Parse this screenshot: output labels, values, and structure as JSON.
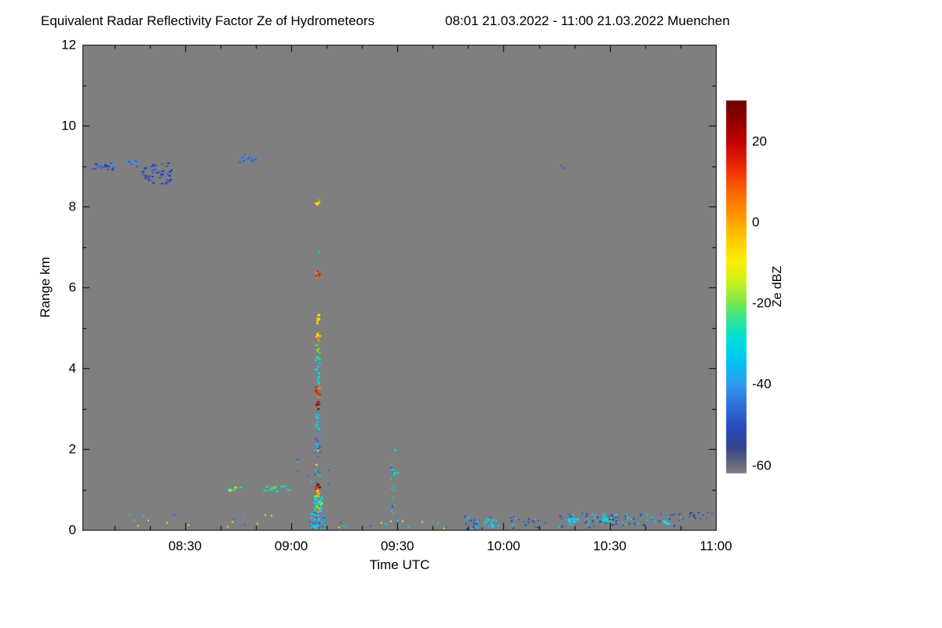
{
  "chart": {
    "title": "Equivalent Radar Reflectivity Factor Ze of Hydrometeors",
    "date_range": "08:01 21.03.2022 - 11:00 21.03.2022 Muenchen",
    "x_label": "Time UTC",
    "y_label": "Range km",
    "colorbar_label": "Ze dBZ"
  },
  "chart_data": {
    "type": "heatmap",
    "title": "Equivalent Radar Reflectivity Factor Ze of Hydrometeors",
    "subtitle": "08:01 21.03.2022 - 11:00 21.03.2022 Muenchen",
    "xlabel": "Time UTC",
    "ylabel": "Range km",
    "x_start": "08:01",
    "x_end": "11:00",
    "x_range_minutes": [
      1,
      180
    ],
    "x_major_step": 30,
    "x_minor_step": 10,
    "ylim_km": [
      0,
      12
    ],
    "y_major_step": 2,
    "y_minor_step": 1,
    "x_ticks": [
      {
        "label": "08:30",
        "minute": 30
      },
      {
        "label": "09:00",
        "minute": 60
      },
      {
        "label": "09:30",
        "minute": 90
      },
      {
        "label": "10:00",
        "minute": 120
      },
      {
        "label": "10:30",
        "minute": 150
      },
      {
        "label": "11:00",
        "minute": 180
      }
    ],
    "y_ticks": [
      {
        "label": "0",
        "km": 0
      },
      {
        "label": "2",
        "km": 2
      },
      {
        "label": "4",
        "km": 4
      },
      {
        "label": "6",
        "km": 6
      },
      {
        "label": "8",
        "km": 8
      },
      {
        "label": "10",
        "km": 10
      },
      {
        "label": "12",
        "km": 12
      }
    ],
    "background_value_color": "#7f7f7f",
    "palette": {
      "blue_dark": "#2436b8",
      "blue": "#2f5fd0",
      "blue_light": "#3f8fe8",
      "cyan": "#00d9ff",
      "teal": "#00e0c0",
      "green": "#55dd33",
      "yellow": "#ffe400",
      "orange": "#ff8800",
      "red": "#e22200",
      "dark_red": "#8a0000"
    },
    "colorbar": {
      "label": "Ze dBZ",
      "value_range": [
        -62,
        30
      ],
      "ticks": [
        {
          "label": "20",
          "value": 20
        },
        {
          "label": "0",
          "value": 0
        },
        {
          "label": "-20",
          "value": -20
        },
        {
          "label": "-40",
          "value": -40
        },
        {
          "label": "-60",
          "value": -60
        }
      ],
      "stops": [
        {
          "pos": 0.0,
          "color": "#6e0000"
        },
        {
          "pos": 0.05,
          "color": "#8f0000"
        },
        {
          "pos": 0.11,
          "color": "#c40000"
        },
        {
          "pos": 0.18,
          "color": "#ee2a00"
        },
        {
          "pos": 0.25,
          "color": "#ff6a00"
        },
        {
          "pos": 0.31,
          "color": "#ff9900"
        },
        {
          "pos": 0.37,
          "color": "#ffc800"
        },
        {
          "pos": 0.43,
          "color": "#fdee00"
        },
        {
          "pos": 0.49,
          "color": "#c8f11e"
        },
        {
          "pos": 0.54,
          "color": "#7ce84a"
        },
        {
          "pos": 0.59,
          "color": "#2fe49b"
        },
        {
          "pos": 0.64,
          "color": "#00dfd8"
        },
        {
          "pos": 0.7,
          "color": "#00c3f5"
        },
        {
          "pos": 0.76,
          "color": "#2f9bef"
        },
        {
          "pos": 0.82,
          "color": "#2f6fd8"
        },
        {
          "pos": 0.88,
          "color": "#2b49bb"
        },
        {
          "pos": 0.93,
          "color": "#33438f"
        },
        {
          "pos": 0.97,
          "color": "#5c6579"
        },
        {
          "pos": 1.0,
          "color": "#7f7f7f"
        }
      ]
    },
    "features": [
      {
        "name": "cloud-layer-0805",
        "t0": 3.5,
        "t1": 10.5,
        "h0": 8.92,
        "h1": 9.12,
        "n": 26,
        "colors": [
          "blue",
          "blue_dark",
          "blue_light"
        ],
        "pw": 3,
        "ph": 2
      },
      {
        "name": "cloud-layer-0813",
        "t0": 12.5,
        "t1": 16.5,
        "h0": 9.0,
        "h1": 9.22,
        "n": 11,
        "colors": [
          "blue",
          "blue_light"
        ],
        "pw": 3,
        "ph": 2
      },
      {
        "name": "cloud-layer-0819",
        "t0": 17.5,
        "t1": 26.0,
        "h0": 8.55,
        "h1": 9.1,
        "n": 46,
        "colors": [
          "blue",
          "blue_dark"
        ],
        "pw": 3,
        "ph": 2
      },
      {
        "name": "cloud-layer-0846",
        "t0": 44.5,
        "t1": 50.5,
        "h0": 9.08,
        "h1": 9.3,
        "n": 16,
        "colors": [
          "blue",
          "blue_light"
        ],
        "pw": 3,
        "ph": 2
      },
      {
        "name": "cloud-dot-1017",
        "t0": 136.0,
        "t1": 137.5,
        "h0": 8.95,
        "h1": 9.06,
        "n": 3,
        "colors": [
          "blue"
        ],
        "pw": 2,
        "ph": 2
      },
      {
        "name": "col-top-yellow-8km",
        "t0": 66.6,
        "t1": 67.7,
        "h0": 8.02,
        "h1": 8.2,
        "n": 5,
        "colors": [
          "yellow",
          "orange"
        ],
        "pw": 3,
        "ph": 2
      },
      {
        "name": "col-dot-69km",
        "t0": 67.0,
        "t1": 67.6,
        "h0": 6.85,
        "h1": 6.95,
        "n": 2,
        "colors": [
          "teal"
        ],
        "pw": 2,
        "ph": 2
      },
      {
        "name": "col-red-63km",
        "t0": 66.6,
        "t1": 67.9,
        "h0": 6.25,
        "h1": 6.4,
        "n": 6,
        "colors": [
          "red",
          "orange"
        ],
        "pw": 3,
        "ph": 2
      },
      {
        "name": "col-yellow-52km",
        "t0": 66.7,
        "t1": 67.7,
        "h0": 5.1,
        "h1": 5.35,
        "n": 7,
        "colors": [
          "yellow"
        ],
        "pw": 3,
        "ph": 2
      },
      {
        "name": "col-yellow-48km",
        "t0": 66.6,
        "t1": 67.8,
        "h0": 4.7,
        "h1": 5.0,
        "n": 9,
        "colors": [
          "yellow",
          "orange"
        ],
        "pw": 3,
        "ph": 2
      },
      {
        "name": "col-yellow-45km",
        "t0": 66.7,
        "t1": 67.7,
        "h0": 4.38,
        "h1": 4.66,
        "n": 7,
        "colors": [
          "yellow",
          "green"
        ],
        "pw": 3,
        "ph": 2
      },
      {
        "name": "col-cyan-41km",
        "t0": 66.7,
        "t1": 67.8,
        "h0": 3.9,
        "h1": 4.3,
        "n": 10,
        "colors": [
          "cyan",
          "green",
          "teal"
        ],
        "pw": 3,
        "ph": 2
      },
      {
        "name": "col-cyan-37km",
        "t0": 66.8,
        "t1": 67.7,
        "h0": 3.62,
        "h1": 3.9,
        "n": 6,
        "colors": [
          "cyan",
          "teal"
        ],
        "pw": 3,
        "ph": 2
      },
      {
        "name": "col-red-34km",
        "t0": 66.6,
        "t1": 67.8,
        "h0": 3.25,
        "h1": 3.6,
        "n": 9,
        "colors": [
          "red",
          "orange"
        ],
        "pw": 3,
        "ph": 2
      },
      {
        "name": "col-darkred-30km",
        "t0": 66.7,
        "t1": 67.7,
        "h0": 2.95,
        "h1": 3.2,
        "n": 7,
        "colors": [
          "dark_red",
          "red"
        ],
        "pw": 3,
        "ph": 2
      },
      {
        "name": "col-cyan-26km",
        "t0": 66.6,
        "t1": 67.9,
        "h0": 2.32,
        "h1": 2.9,
        "n": 16,
        "colors": [
          "cyan",
          "teal",
          "blue_light"
        ],
        "pw": 3,
        "ph": 2
      },
      {
        "name": "col-blue-21km",
        "t0": 66.6,
        "t1": 67.8,
        "h0": 2.0,
        "h1": 2.3,
        "n": 8,
        "colors": [
          "blue",
          "cyan"
        ],
        "pw": 3,
        "ph": 2
      },
      {
        "name": "col-mixed-17km",
        "t0": 66.3,
        "t1": 68.1,
        "h0": 1.25,
        "h1": 2.0,
        "n": 13,
        "colors": [
          "blue",
          "cyan",
          "yellow"
        ],
        "pw": 2,
        "ph": 2
      },
      {
        "name": "col-darkred-11km",
        "t0": 66.5,
        "t1": 67.9,
        "h0": 1.03,
        "h1": 1.2,
        "n": 7,
        "colors": [
          "dark_red",
          "red"
        ],
        "pw": 3,
        "ph": 2
      },
      {
        "name": "col-orange-09km",
        "t0": 66.6,
        "t1": 67.8,
        "h0": 0.85,
        "h1": 1.0,
        "n": 5,
        "colors": [
          "orange",
          "yellow"
        ],
        "pw": 3,
        "ph": 2
      },
      {
        "name": "col-dense-mid",
        "t0": 66.0,
        "t1": 68.6,
        "h0": 0.45,
        "h1": 0.85,
        "n": 55,
        "colors": [
          "cyan",
          "teal",
          "green",
          "cyan",
          "yellow",
          "cyan"
        ],
        "pw": 2,
        "ph": 2
      },
      {
        "name": "col-dense-low",
        "t0": 65.5,
        "t1": 69.3,
        "h0": 0.05,
        "h1": 0.45,
        "n": 70,
        "colors": [
          "cyan",
          "blue_light",
          "cyan",
          "teal",
          "blue"
        ],
        "pw": 2,
        "ph": 2
      },
      {
        "name": "col-halo",
        "t0": 64.5,
        "t1": 70.5,
        "h0": 0.1,
        "h1": 1.6,
        "n": 12,
        "colors": [
          "blue",
          "cyan"
        ],
        "pw": 2,
        "ph": 2
      },
      {
        "name": "0930-dot-2km",
        "t0": 88.8,
        "t1": 89.5,
        "h0": 1.98,
        "h1": 2.06,
        "n": 2,
        "colors": [
          "cyan"
        ],
        "pw": 2,
        "ph": 2
      },
      {
        "name": "0930-column",
        "t0": 87.8,
        "t1": 89.4,
        "h0": 0.35,
        "h1": 1.65,
        "n": 13,
        "colors": [
          "cyan",
          "blue",
          "teal"
        ],
        "pw": 2,
        "ph": 2
      },
      {
        "name": "0930-cluster-14km",
        "t0": 88.0,
        "t1": 90.3,
        "h0": 1.28,
        "h1": 1.52,
        "n": 10,
        "colors": [
          "cyan",
          "teal"
        ],
        "pw": 2,
        "ph": 2
      },
      {
        "name": "0930-surface",
        "t0": 86.5,
        "t1": 93.5,
        "h0": 0.08,
        "h1": 0.3,
        "n": 9,
        "colors": [
          "cyan",
          "yellow",
          "blue_light"
        ],
        "pw": 2,
        "ph": 2
      },
      {
        "name": "left-surface-sparse",
        "t0": 3.0,
        "t1": 64.0,
        "h0": 0.05,
        "h1": 0.4,
        "n": 22,
        "colors": [
          "cyan",
          "blue_light",
          "yellow",
          "teal",
          "blue"
        ],
        "pw": 2,
        "ph": 2
      },
      {
        "name": "mid-surface-sparse",
        "t0": 71.0,
        "t1": 104.0,
        "h0": 0.05,
        "h1": 0.28,
        "n": 12,
        "colors": [
          "blue",
          "cyan",
          "yellow"
        ],
        "pw": 2,
        "ph": 2
      },
      {
        "name": "1km-dashes-0842",
        "t0": 42.0,
        "t1": 45.5,
        "h0": 0.98,
        "h1": 1.1,
        "n": 9,
        "colors": [
          "cyan",
          "green",
          "yellow"
        ],
        "pw": 4,
        "ph": 2
      },
      {
        "name": "1km-dashes-0852",
        "t0": 51.5,
        "t1": 59.5,
        "h0": 0.98,
        "h1": 1.12,
        "n": 14,
        "colors": [
          "cyan",
          "teal",
          "green"
        ],
        "pw": 4,
        "ph": 2
      },
      {
        "name": "pre-column-dots",
        "t0": 60.0,
        "t1": 64.5,
        "h0": 1.3,
        "h1": 1.78,
        "n": 5,
        "colors": [
          "blue",
          "cyan"
        ],
        "pw": 2,
        "ph": 2
      },
      {
        "name": "surface-0950",
        "t0": 108.5,
        "t1": 117.0,
        "h0": 0.04,
        "h1": 0.35,
        "n": 32,
        "colors": [
          "blue",
          "cyan",
          "blue_dark",
          "blue_light"
        ],
        "pw": 2,
        "ph": 2
      },
      {
        "name": "surface-1000-blob",
        "t0": 114.5,
        "t1": 118.5,
        "h0": 0.08,
        "h1": 0.3,
        "n": 24,
        "colors": [
          "cyan",
          "teal",
          "cyan",
          "blue_light"
        ],
        "pw": 2,
        "ph": 2
      },
      {
        "name": "surface-1003",
        "t0": 121.0,
        "t1": 132.0,
        "h0": 0.05,
        "h1": 0.35,
        "n": 24,
        "colors": [
          "blue",
          "cyan",
          "blue_dark"
        ],
        "pw": 2,
        "ph": 2
      },
      {
        "name": "surface-1015",
        "t0": 135.0,
        "t1": 147.0,
        "h0": 0.08,
        "h1": 0.42,
        "n": 38,
        "colors": [
          "blue",
          "blue_dark",
          "cyan",
          "blue_light"
        ],
        "pw": 2,
        "ph": 2
      },
      {
        "name": "surface-1027",
        "t0": 147.0,
        "t1": 157.0,
        "h0": 0.1,
        "h1": 0.45,
        "n": 40,
        "colors": [
          "blue",
          "cyan",
          "blue_dark",
          "teal"
        ],
        "pw": 2,
        "ph": 2
      },
      {
        "name": "surface-1037",
        "t0": 157.0,
        "t1": 172.0,
        "h0": 0.12,
        "h1": 0.45,
        "n": 34,
        "colors": [
          "blue",
          "blue_dark",
          "blue_light",
          "cyan"
        ],
        "pw": 2,
        "ph": 2
      },
      {
        "name": "surface-1052",
        "t0": 172.0,
        "t1": 179.5,
        "h0": 0.28,
        "h1": 0.46,
        "n": 13,
        "colors": [
          "blue",
          "blue_dark"
        ],
        "pw": 2,
        "ph": 2
      },
      {
        "name": "cyan-dash-1018",
        "t0": 138.0,
        "t1": 141.0,
        "h0": 0.22,
        "h1": 0.32,
        "n": 8,
        "colors": [
          "cyan"
        ],
        "pw": 4,
        "ph": 2
      },
      {
        "name": "cyan-dash-1028",
        "t0": 148.0,
        "t1": 151.0,
        "h0": 0.2,
        "h1": 0.34,
        "n": 10,
        "colors": [
          "cyan",
          "teal"
        ],
        "pw": 3,
        "ph": 2
      },
      {
        "name": "cyan-dash-1045",
        "t0": 164.5,
        "t1": 167.5,
        "h0": 0.14,
        "h1": 0.26,
        "n": 8,
        "colors": [
          "cyan"
        ],
        "pw": 4,
        "ph": 2
      }
    ]
  }
}
